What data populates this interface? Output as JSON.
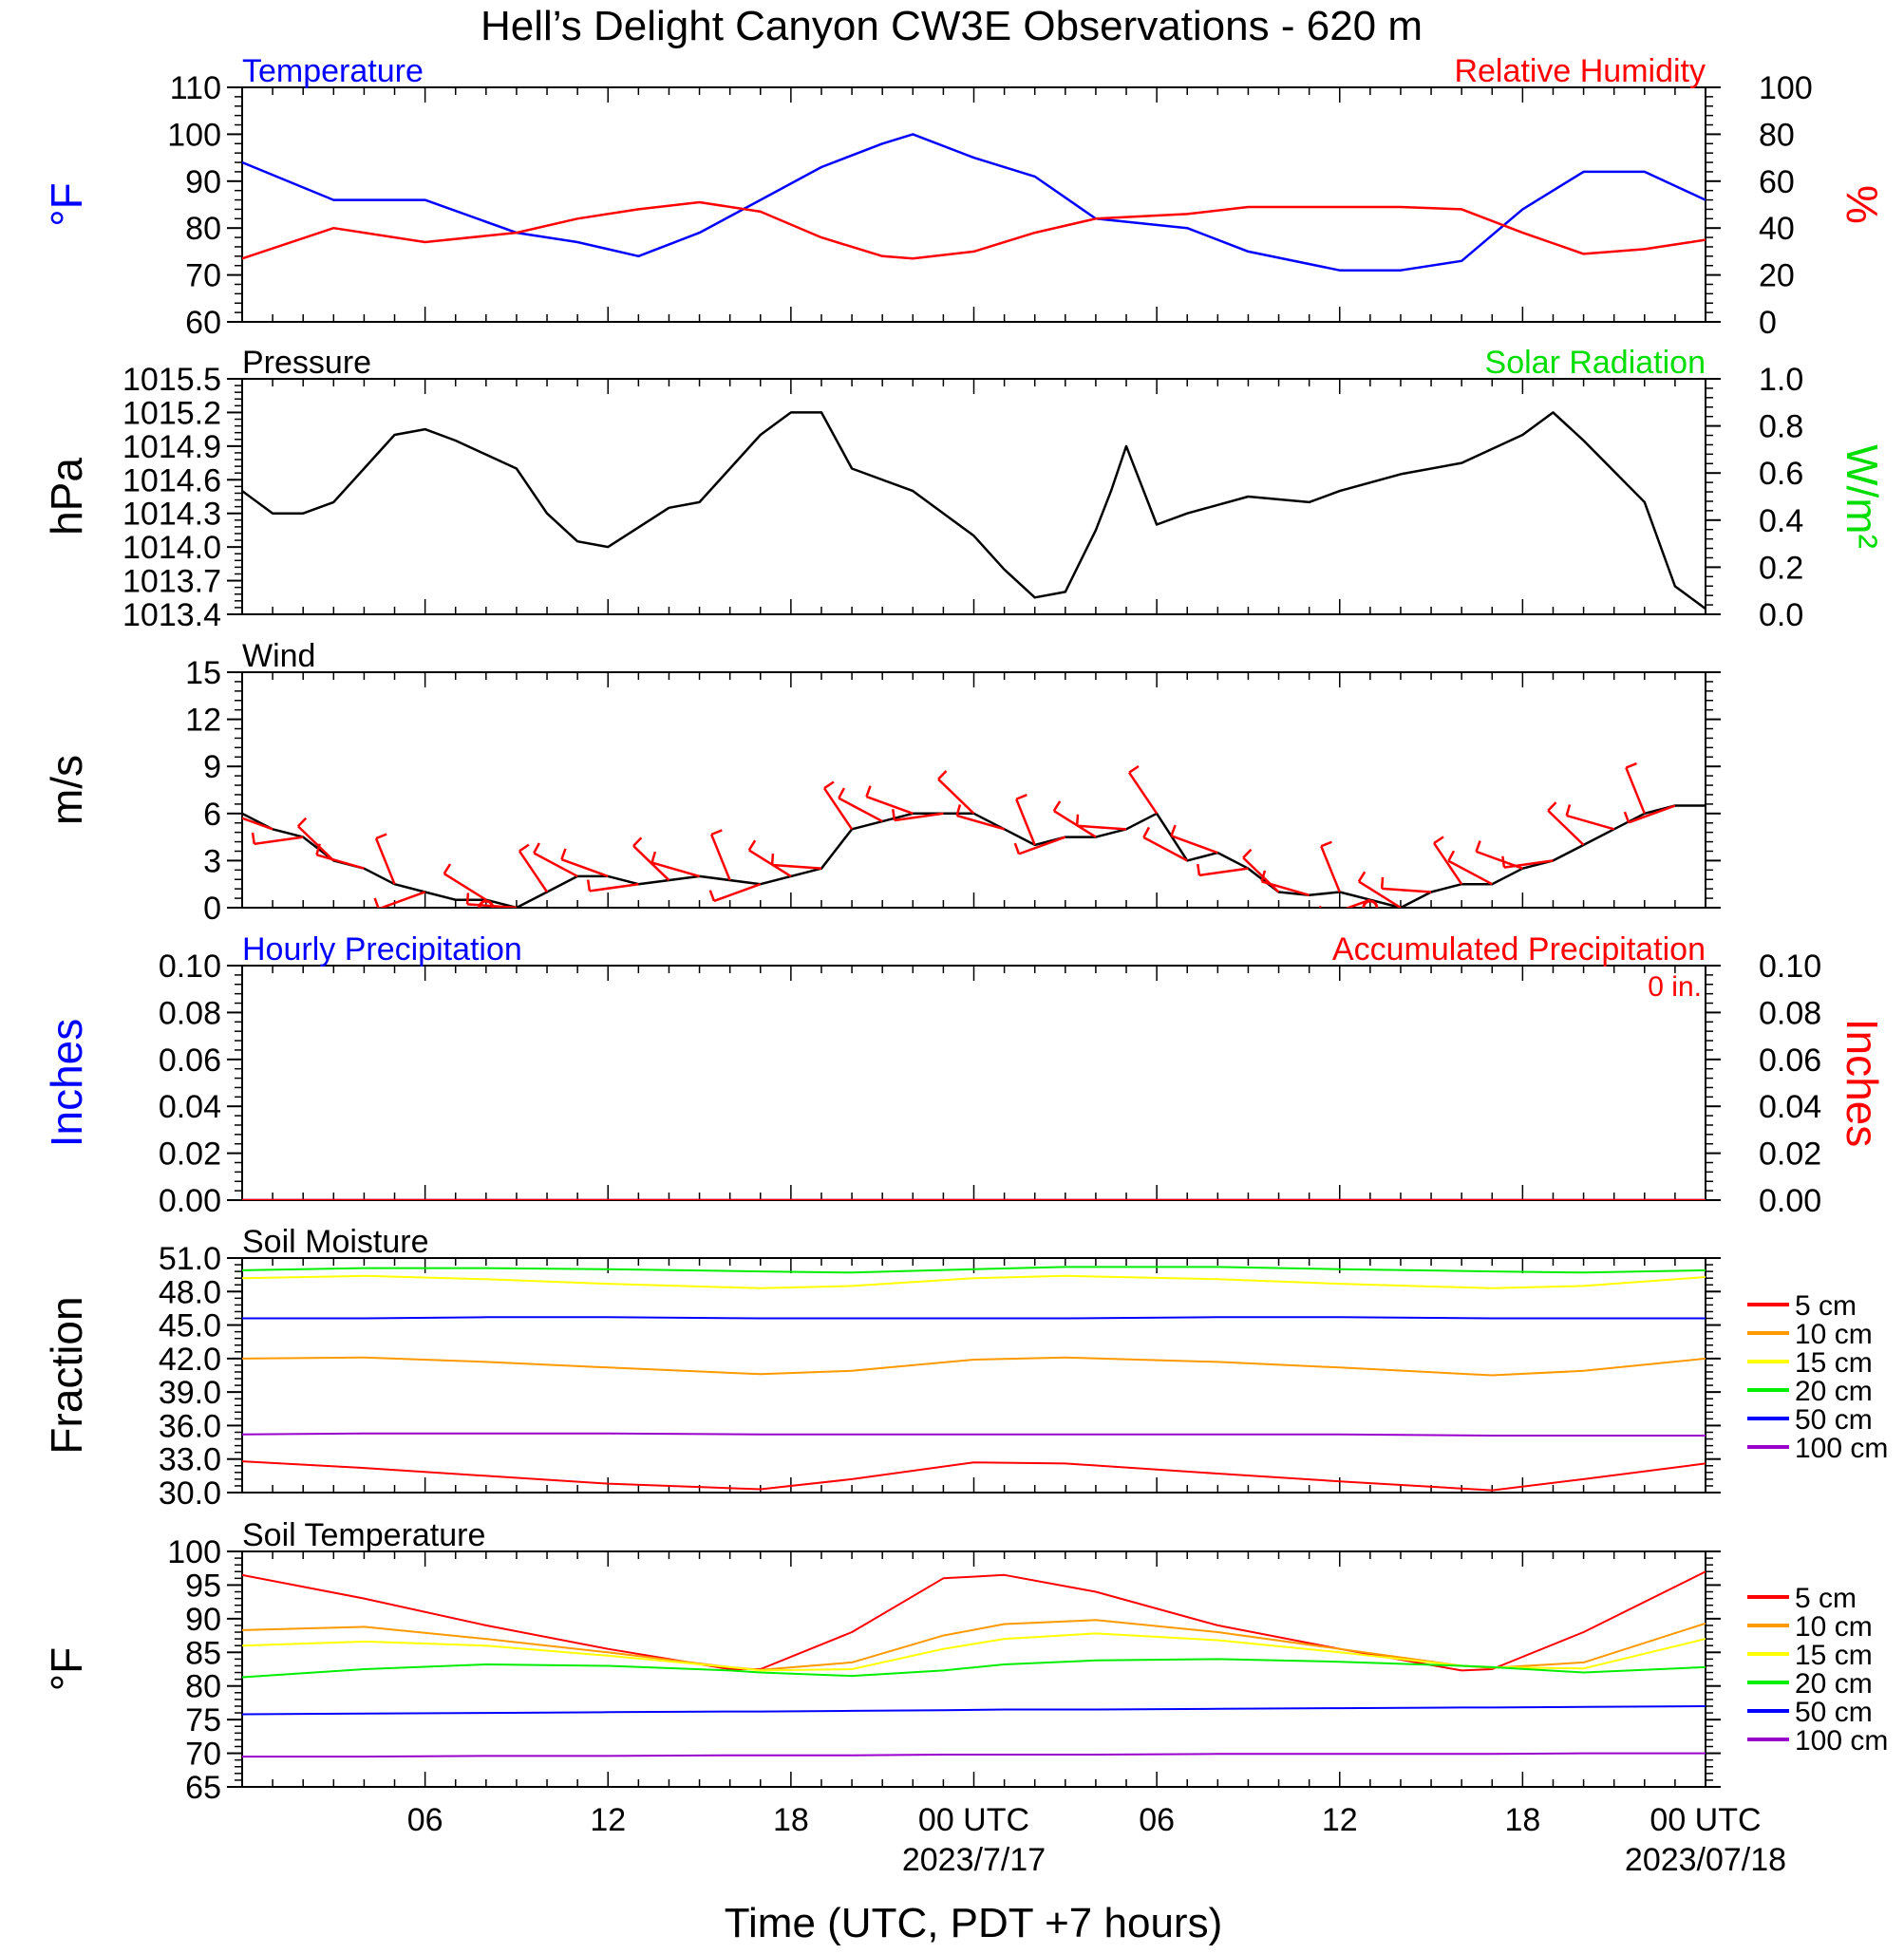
{
  "title": "Hell’s Delight Canyon CW3E Observations - 620 m",
  "x_axis": {
    "label": "Time (UTC, PDT +7 hours)",
    "ticks": [
      "06",
      "12",
      "18",
      "00 UTC",
      "06",
      "12",
      "18",
      "00 UTC"
    ],
    "dates": [
      "2023/7/17",
      "2023/07/18"
    ]
  },
  "colors": {
    "temperature": "#0000ff",
    "humidity": "#ff0000",
    "pressure": "#000000",
    "solar": "#00dd00",
    "wind_barbs": "#ff0000",
    "hourly_precip": "#0000ff",
    "accum_precip": "#ff0000"
  },
  "chart_data": [
    {
      "type": "line",
      "id": "temp_rh",
      "title_left": "Temperature",
      "title_right": "Relative Humidity",
      "ylabel_left": "°F",
      "ylabel_right": "%",
      "ylim_left": [
        60,
        110
      ],
      "ylim_right": [
        0,
        100
      ],
      "yticks_left": [
        "110",
        "100",
        "90",
        "80",
        "70",
        "60"
      ],
      "yticks_right": [
        "100",
        "80",
        "60",
        "40",
        "20",
        "0"
      ],
      "x_hours": [
        0,
        3,
        6,
        9,
        11,
        13,
        15,
        17,
        19,
        21,
        22,
        24,
        26,
        28,
        31,
        33,
        36,
        38,
        40,
        42,
        44,
        46,
        48
      ],
      "series": [
        {
          "name": "Temperature",
          "axis": "left",
          "color": "#0000ff",
          "values": [
            94,
            86,
            86,
            79,
            77,
            74,
            79,
            86,
            93,
            98,
            100,
            95,
            91,
            82,
            80,
            75,
            71,
            71,
            73,
            84,
            92,
            92,
            86
          ]
        },
        {
          "name": "Relative Humidity",
          "axis": "right",
          "color": "#ff0000",
          "values": [
            27,
            40,
            34,
            38,
            44,
            48,
            51,
            47,
            36,
            28,
            27,
            30,
            38,
            44,
            46,
            49,
            49,
            49,
            48,
            38,
            29,
            31,
            35
          ]
        }
      ]
    },
    {
      "type": "line",
      "id": "pressure",
      "title_left": "Pressure",
      "title_right": "Solar Radiation",
      "ylabel_left": "hPa",
      "ylabel_right": "W/m²",
      "ylim_left": [
        1013.4,
        1015.5
      ],
      "ylim_right": [
        0.0,
        1.0
      ],
      "yticks_left": [
        "1015.5",
        "1015.2",
        "1014.9",
        "1014.6",
        "1014.3",
        "1014.0",
        "1013.7",
        "1013.4"
      ],
      "yticks_right": [
        "1.0",
        "0.8",
        "0.6",
        "0.4",
        "0.2",
        "0.0"
      ],
      "x_hours": [
        0,
        1,
        2,
        3,
        5,
        6,
        7,
        9,
        10,
        11,
        12,
        14,
        15,
        17,
        18,
        19,
        20,
        22,
        24,
        25,
        26,
        27,
        28,
        28.5,
        29,
        30,
        31,
        33,
        35,
        36,
        38,
        40,
        42,
        43,
        44,
        46,
        47,
        48
      ],
      "series": [
        {
          "name": "Pressure",
          "axis": "left",
          "color": "#000000",
          "values": [
            1014.5,
            1014.3,
            1014.3,
            1014.4,
            1015.0,
            1015.05,
            1014.95,
            1014.7,
            1014.3,
            1014.05,
            1014.0,
            1014.35,
            1014.4,
            1015.0,
            1015.2,
            1015.2,
            1014.7,
            1014.5,
            1014.1,
            1013.8,
            1013.55,
            1013.6,
            1014.15,
            1014.5,
            1014.9,
            1014.2,
            1014.3,
            1014.45,
            1014.4,
            1014.5,
            1014.65,
            1014.75,
            1015.0,
            1015.2,
            1014.95,
            1014.4,
            1013.65,
            1013.45
          ]
        }
      ]
    },
    {
      "type": "line",
      "id": "wind",
      "title_left": "Wind",
      "ylabel_left": "m/s",
      "ylim_left": [
        0,
        15
      ],
      "yticks_left": [
        "15",
        "12",
        "9",
        "6",
        "3",
        "0"
      ],
      "x_hours": [
        0,
        1,
        2,
        3,
        4,
        5,
        6,
        7,
        8,
        9,
        10,
        11,
        12,
        13,
        15,
        17,
        18,
        19,
        20,
        21,
        22,
        24,
        25,
        26,
        27,
        28,
        29,
        30,
        31,
        32,
        33,
        34,
        35,
        36,
        37,
        38,
        39,
        40,
        41,
        42,
        43,
        44,
        45,
        46,
        47,
        48
      ],
      "series": [
        {
          "name": "Wind speed",
          "axis": "left",
          "color": "#000000",
          "values": [
            6,
            5,
            4.5,
            3,
            2.5,
            1.5,
            1,
            0.5,
            0.5,
            0,
            1,
            2,
            2,
            1.5,
            2,
            1.5,
            2,
            2.5,
            5,
            5.5,
            6,
            6,
            5,
            4,
            4.5,
            4.5,
            5,
            6,
            3,
            3.5,
            2.5,
            1,
            0.8,
            1,
            0.5,
            0,
            1,
            1.5,
            1.5,
            2.5,
            3,
            4,
            5,
            6,
            6.5,
            6.5
          ]
        }
      ],
      "barbs_x_hours": [
        1,
        2,
        3,
        4,
        5,
        6,
        8,
        9,
        10,
        11,
        12,
        13,
        14,
        15,
        16,
        17,
        18,
        19,
        20,
        21,
        22,
        23,
        24,
        25,
        26,
        27,
        28,
        29,
        30,
        31,
        32,
        33,
        34,
        35,
        36,
        37,
        38,
        39,
        40,
        41,
        42,
        43,
        44,
        45,
        46,
        47
      ],
      "calm_x_hours": [
        8,
        37
      ]
    },
    {
      "type": "line",
      "id": "precip",
      "title_left": "Hourly Precipitation",
      "title_right": "Accumulated Precipitation",
      "annotation": "0 in.",
      "ylabel_left": "Inches",
      "ylabel_right": "Inches",
      "ylim_left": [
        0,
        0.1
      ],
      "ylim_right": [
        0,
        0.1
      ],
      "yticks_left": [
        "0.10",
        "0.08",
        "0.06",
        "0.04",
        "0.02",
        "0.00"
      ],
      "yticks_right": [
        "0.10",
        "0.08",
        "0.06",
        "0.04",
        "0.02",
        "0.00"
      ],
      "x_hours": [
        0,
        48
      ],
      "series": [
        {
          "name": "Hourly Precipitation",
          "axis": "left",
          "color": "#0000ff",
          "values": [
            0,
            0
          ]
        },
        {
          "name": "Accumulated Precipitation",
          "axis": "right",
          "color": "#ff0000",
          "values": [
            0,
            0
          ]
        }
      ]
    },
    {
      "type": "line",
      "id": "soil_moisture",
      "title_left": "Soil Moisture",
      "ylabel_left": "Fraction",
      "ylim_left": [
        30,
        51
      ],
      "yticks_left": [
        "51.0",
        "48.0",
        "45.0",
        "42.0",
        "39.0",
        "36.0",
        "33.0",
        "30.0"
      ],
      "x_hours": [
        0,
        4,
        8,
        12,
        17,
        20,
        24,
        27,
        32,
        36,
        41,
        44,
        48
      ],
      "legend": [
        "5 cm",
        "10 cm",
        "15 cm",
        "20 cm",
        "50 cm",
        "100 cm"
      ],
      "series": [
        {
          "name": "5 cm",
          "axis": "left",
          "color": "#ff0000",
          "values": [
            32.8,
            32.2,
            31.5,
            30.8,
            30.3,
            31.2,
            32.7,
            32.6,
            31.7,
            31.0,
            30.2,
            31.2,
            32.6
          ]
        },
        {
          "name": "10 cm",
          "axis": "left",
          "color": "#ff9900",
          "values": [
            42.0,
            42.1,
            41.7,
            41.2,
            40.6,
            40.9,
            41.9,
            42.1,
            41.7,
            41.2,
            40.5,
            40.9,
            42.0
          ]
        },
        {
          "name": "15 cm",
          "axis": "left",
          "color": "#ffff00",
          "values": [
            49.2,
            49.4,
            49.1,
            48.7,
            48.3,
            48.5,
            49.2,
            49.4,
            49.1,
            48.7,
            48.3,
            48.5,
            49.3
          ]
        },
        {
          "name": "20 cm",
          "axis": "left",
          "color": "#00ee00",
          "values": [
            49.9,
            50.1,
            50.1,
            50.0,
            49.8,
            49.7,
            50.0,
            50.2,
            50.2,
            50.0,
            49.8,
            49.7,
            49.9
          ]
        },
        {
          "name": "50 cm",
          "axis": "left",
          "color": "#0000ff",
          "values": [
            45.6,
            45.6,
            45.7,
            45.7,
            45.6,
            45.6,
            45.6,
            45.6,
            45.7,
            45.7,
            45.6,
            45.6,
            45.6
          ]
        },
        {
          "name": "100 cm",
          "axis": "left",
          "color": "#9900cc",
          "values": [
            35.2,
            35.3,
            35.3,
            35.3,
            35.2,
            35.2,
            35.2,
            35.2,
            35.2,
            35.2,
            35.1,
            35.1,
            35.1
          ]
        }
      ]
    },
    {
      "type": "line",
      "id": "soil_temperature",
      "title_left": "Soil Temperature",
      "ylabel_left": "°F",
      "ylim_left": [
        65,
        100
      ],
      "yticks_left": [
        "100",
        "95",
        "90",
        "85",
        "80",
        "75",
        "70",
        "65"
      ],
      "x_hours": [
        0,
        4,
        8,
        12,
        16,
        17,
        20,
        23,
        25,
        28,
        32,
        36,
        40,
        41,
        44,
        48
      ],
      "legend": [
        "5 cm",
        "10 cm",
        "15 cm",
        "20 cm",
        "50 cm",
        "100 cm"
      ],
      "series": [
        {
          "name": "5 cm",
          "axis": "left",
          "color": "#ff0000",
          "values": [
            96.5,
            93.0,
            89.0,
            85.5,
            82.5,
            82.5,
            88.0,
            96.0,
            96.5,
            94.0,
            89.0,
            85.5,
            82.3,
            82.5,
            88.0,
            97.0
          ]
        },
        {
          "name": "10 cm",
          "axis": "left",
          "color": "#ff9900",
          "values": [
            88.3,
            88.8,
            87.0,
            85.0,
            82.8,
            82.4,
            83.5,
            87.5,
            89.2,
            89.8,
            88.0,
            85.5,
            83.0,
            82.7,
            83.5,
            89.3
          ]
        },
        {
          "name": "15 cm",
          "axis": "left",
          "color": "#ffff00",
          "values": [
            86.0,
            86.6,
            86.0,
            84.5,
            82.8,
            82.3,
            82.5,
            85.5,
            87.0,
            87.8,
            86.8,
            85.0,
            83.0,
            82.8,
            82.6,
            87.0
          ]
        },
        {
          "name": "20 cm",
          "axis": "left",
          "color": "#00ee00",
          "values": [
            81.3,
            82.5,
            83.2,
            83.0,
            82.3,
            82.0,
            81.5,
            82.3,
            83.2,
            83.8,
            84.0,
            83.6,
            83.0,
            82.8,
            82.0,
            82.8
          ]
        },
        {
          "name": "50 cm",
          "axis": "left",
          "color": "#0000ff",
          "values": [
            75.8,
            75.9,
            76.0,
            76.1,
            76.2,
            76.2,
            76.3,
            76.4,
            76.5,
            76.5,
            76.6,
            76.7,
            76.8,
            76.8,
            76.9,
            77.0
          ]
        },
        {
          "name": "100 cm",
          "axis": "left",
          "color": "#9900cc",
          "values": [
            69.5,
            69.5,
            69.6,
            69.6,
            69.7,
            69.7,
            69.7,
            69.8,
            69.8,
            69.8,
            69.9,
            69.9,
            69.9,
            69.9,
            70.0,
            70.0
          ]
        }
      ]
    }
  ]
}
